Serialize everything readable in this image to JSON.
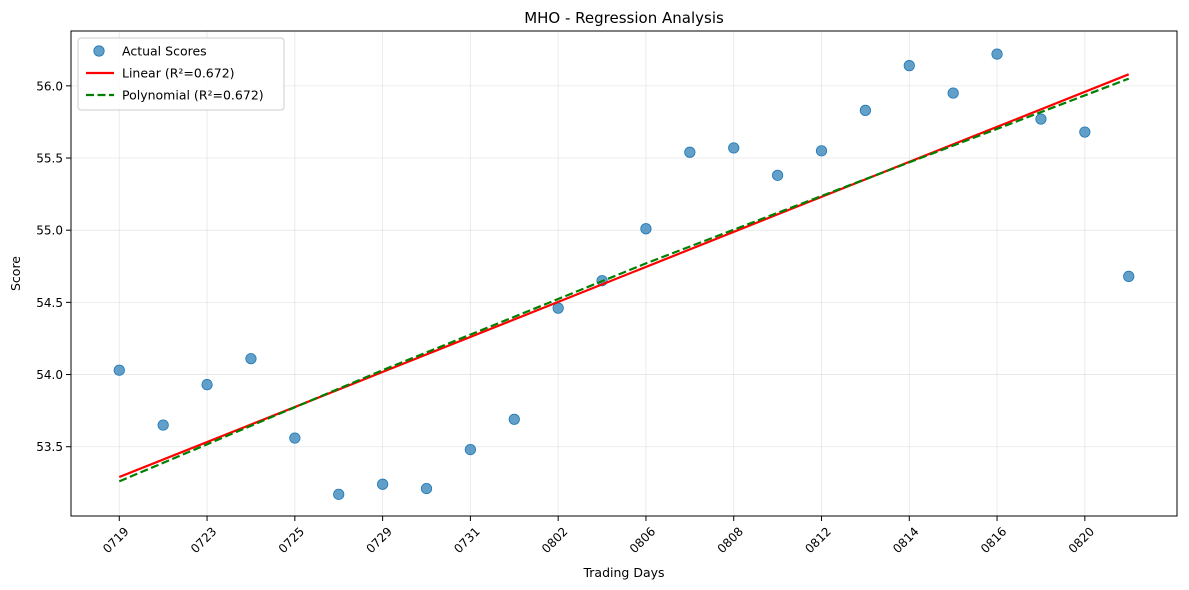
{
  "chart_data": {
    "type": "scatter",
    "title": "MHO - Regression Analysis",
    "xlabel": "Trading Days",
    "ylabel": "Score",
    "x_tick_labels": [
      "0719",
      "0723",
      "0725",
      "0729",
      "0731",
      "0802",
      "0806",
      "0808",
      "0812",
      "0814",
      "0816",
      "0820"
    ],
    "x_tick_positions": [
      0,
      2,
      4,
      6,
      8,
      10,
      12,
      14,
      16,
      18,
      20,
      22
    ],
    "y_ticks": [
      53.5,
      54.0,
      54.5,
      55.0,
      55.5,
      56.0
    ],
    "y_tick_labels": [
      "53.5",
      "54.0",
      "54.5",
      "55.0",
      "55.5",
      "56.0"
    ],
    "xlim": [
      -1.1,
      24.1
    ],
    "ylim": [
      53.02,
      56.38
    ],
    "grid": true,
    "legend_position": "top-left",
    "series": [
      {
        "name": "Actual Scores",
        "kind": "scatter",
        "color": "#1f77b4",
        "x": [
          0,
          1,
          2,
          3,
          4,
          5,
          6,
          7,
          8,
          9,
          10,
          11,
          12,
          13,
          14,
          15,
          16,
          17,
          18,
          19,
          20,
          21,
          22,
          23
        ],
        "y": [
          54.03,
          53.65,
          53.93,
          54.11,
          53.56,
          53.17,
          53.24,
          53.21,
          53.48,
          53.69,
          54.46,
          54.65,
          55.01,
          55.54,
          55.57,
          55.38,
          55.55,
          55.83,
          56.14,
          55.95,
          56.22,
          55.77,
          55.68,
          54.68
        ]
      },
      {
        "name": "Linear (R²=0.672)",
        "kind": "line",
        "style": "solid",
        "color": "#ff0000",
        "x": [
          0,
          23
        ],
        "y": [
          53.29,
          56.08
        ]
      },
      {
        "name": "Polynomial (R²=0.672)",
        "kind": "line",
        "style": "dashed",
        "color": "#008000",
        "x": [
          0,
          6,
          12,
          18,
          23
        ],
        "y": [
          53.26,
          54.03,
          54.77,
          55.47,
          56.05
        ]
      }
    ]
  }
}
